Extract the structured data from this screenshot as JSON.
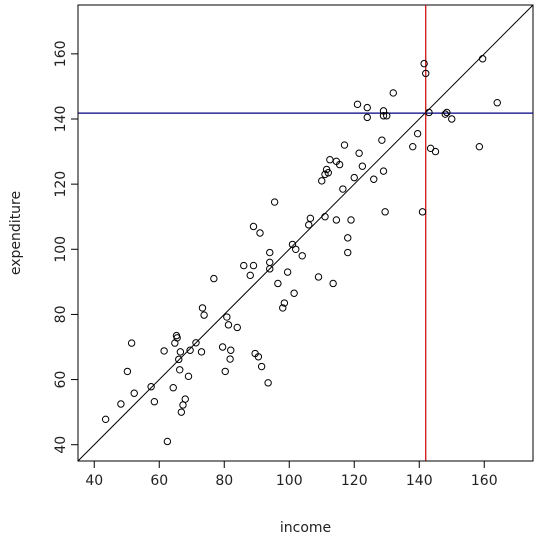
{
  "chart_data": {
    "type": "scatter",
    "title": "",
    "xlabel": "income",
    "ylabel": "expenditure",
    "xlim": [
      35,
      175
    ],
    "ylim": [
      35,
      175
    ],
    "x_ticks": [
      40,
      60,
      80,
      100,
      120,
      140,
      160
    ],
    "y_ticks": [
      40,
      60,
      80,
      100,
      120,
      140,
      160
    ],
    "grid": false,
    "reference_lines": {
      "identity": {
        "slope": 1,
        "intercept": 0,
        "color": "#000000"
      },
      "vertical_x": 142,
      "vertical_color": "#cc0000",
      "horizontal_y": 141.8,
      "horizontal_color": "#000080"
    },
    "series": [
      {
        "values": [
          [
            43.5,
            47.8
          ],
          [
            48.2,
            52.5
          ],
          [
            50.2,
            62.5
          ],
          [
            51.5,
            71.2
          ],
          [
            52.3,
            55.8
          ],
          [
            57.5,
            57.8
          ],
          [
            58.5,
            53.2
          ],
          [
            61.5,
            68.8
          ],
          [
            62.5,
            41.0
          ],
          [
            64.3,
            57.5
          ],
          [
            64.8,
            71.2
          ],
          [
            65.3,
            73.5
          ],
          [
            65.5,
            72.8
          ],
          [
            66.0,
            66.2
          ],
          [
            66.5,
            68.5
          ],
          [
            66.3,
            63.0
          ],
          [
            66.8,
            50.0
          ],
          [
            67.3,
            52.2
          ],
          [
            68.0,
            54.0
          ],
          [
            69.0,
            61.0
          ],
          [
            69.5,
            69.0
          ],
          [
            71.3,
            71.3
          ],
          [
            73.0,
            68.5
          ],
          [
            73.3,
            82.0
          ],
          [
            73.8,
            79.8
          ],
          [
            76.8,
            91.0
          ],
          [
            79.5,
            70.0
          ],
          [
            80.3,
            62.5
          ],
          [
            80.8,
            79.2
          ],
          [
            81.3,
            76.8
          ],
          [
            81.8,
            66.3
          ],
          [
            82.0,
            69.0
          ],
          [
            84.0,
            76.0
          ],
          [
            86.0,
            95.0
          ],
          [
            88.0,
            92.0
          ],
          [
            89.0,
            95.0
          ],
          [
            89.0,
            107.0
          ],
          [
            89.5,
            68.0
          ],
          [
            90.5,
            67.0
          ],
          [
            91.0,
            105.0
          ],
          [
            91.5,
            64.0
          ],
          [
            93.5,
            59.0
          ],
          [
            94.0,
            94.0
          ],
          [
            94.0,
            96.0
          ],
          [
            94.0,
            99.0
          ],
          [
            95.5,
            114.5
          ],
          [
            96.5,
            89.5
          ],
          [
            98.0,
            82.0
          ],
          [
            98.5,
            83.5
          ],
          [
            99.5,
            93.0
          ],
          [
            101.0,
            101.5
          ],
          [
            101.5,
            86.5
          ],
          [
            102.0,
            100.0
          ],
          [
            104.0,
            98.0
          ],
          [
            106.5,
            109.5
          ],
          [
            106.0,
            107.5
          ],
          [
            109.0,
            91.5
          ],
          [
            110.0,
            121.0
          ],
          [
            111.0,
            123.0
          ],
          [
            111.5,
            124.5
          ],
          [
            111.0,
            110.0
          ],
          [
            112.0,
            123.5
          ],
          [
            112.5,
            127.5
          ],
          [
            113.5,
            89.5
          ],
          [
            114.5,
            127.0
          ],
          [
            114.5,
            109.0
          ],
          [
            115.5,
            126.0
          ],
          [
            116.5,
            118.5
          ],
          [
            117.0,
            132.0
          ],
          [
            118.0,
            99.0
          ],
          [
            118.0,
            103.5
          ],
          [
            119.0,
            109.0
          ],
          [
            120.0,
            122.0
          ],
          [
            121.0,
            144.5
          ],
          [
            121.5,
            129.5
          ],
          [
            122.5,
            125.5
          ],
          [
            124.0,
            143.5
          ],
          [
            124.0,
            140.5
          ],
          [
            126.0,
            121.5
          ],
          [
            128.5,
            133.5
          ],
          [
            129.0,
            142.5
          ],
          [
            129.0,
            141.0
          ],
          [
            129.0,
            124.0
          ],
          [
            129.5,
            111.5
          ],
          [
            130.0,
            141.0
          ],
          [
            132.0,
            148.0
          ],
          [
            138.0,
            131.5
          ],
          [
            139.5,
            135.5
          ],
          [
            141.0,
            111.5
          ],
          [
            141.5,
            157.0
          ],
          [
            142.0,
            154.0
          ],
          [
            143.0,
            142.0
          ],
          [
            143.5,
            131.0
          ],
          [
            145.0,
            130.0
          ],
          [
            148.0,
            141.5
          ],
          [
            148.5,
            142.0
          ],
          [
            150.0,
            140.0
          ],
          [
            158.5,
            131.5
          ],
          [
            159.5,
            158.5
          ],
          [
            164.0,
            145.0
          ]
        ]
      }
    ]
  }
}
